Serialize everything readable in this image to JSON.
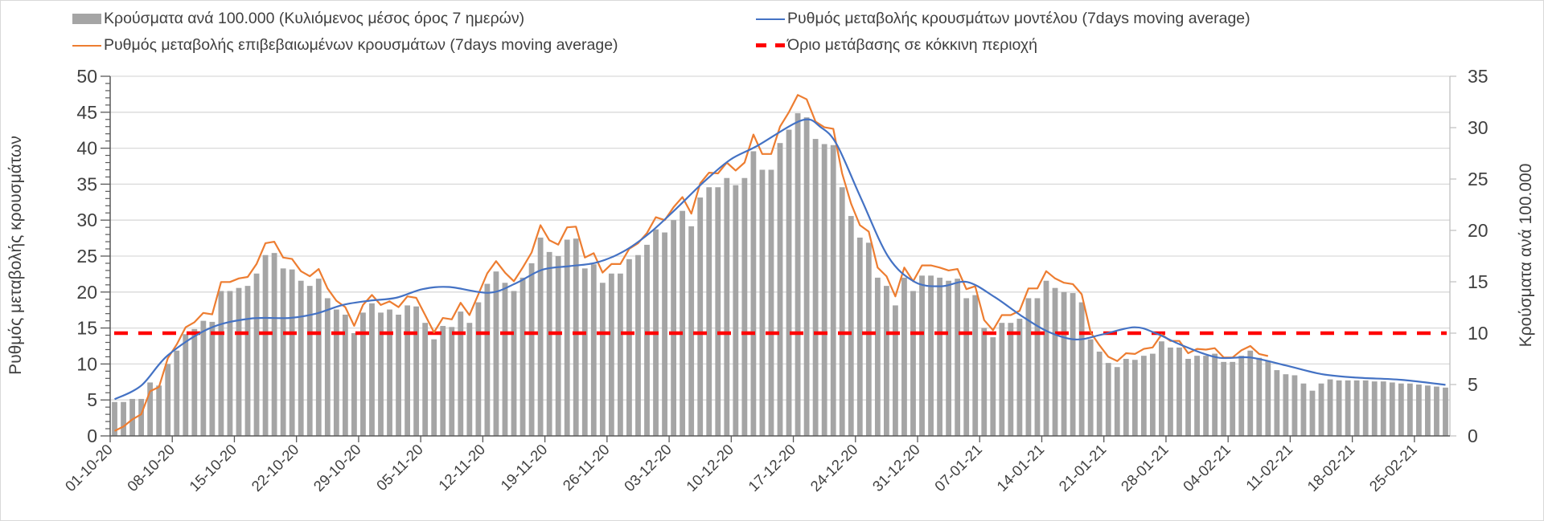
{
  "legend": {
    "bars": "Κρούσματα ανά 100.000 (Κυλιόμενος μέσος όρος 7 ημερών)",
    "orange": "Ρυθμός μεταβολής επιβεβαιωμένων κρουσμάτων (7days moving average)",
    "blue": "Ρυθμός μεταβολής κρουσμάτων μοντέλου (7days moving average)",
    "red": "Όριο μετάβασης σε κόκκινη περιοχή"
  },
  "chart_data": {
    "type": "bar+line",
    "x_axis": {
      "unit": "day index from 01-10-20 (daily categories)",
      "count": 151,
      "tick_every_days": 7,
      "tick_labels": [
        "01-10-20",
        "08-10-20",
        "15-10-20",
        "22-10-20",
        "29-10-20",
        "05-11-20",
        "12-11-20",
        "19-11-20",
        "26-11-20",
        "03-12-20",
        "10-12-20",
        "17-12-20",
        "24-12-20",
        "31-12-20",
        "07-01-21",
        "14-01-21",
        "21-01-21",
        "28-01-21",
        "04-02-21",
        "11-02-21",
        "18-02-21",
        "25-02-21"
      ]
    },
    "y_left": {
      "label": "Ρυθμός μεταβολής κρουσμάτων",
      "lim": [
        0,
        50
      ],
      "ticks": [
        "0",
        "5",
        "10",
        "15",
        "20",
        "25",
        "30",
        "35",
        "40",
        "45",
        "50"
      ],
      "grid": true
    },
    "y_right": {
      "label": "Κρούσματα ανά 100.000",
      "lim": [
        0,
        35
      ],
      "ticks": [
        "0",
        "5",
        "10",
        "15",
        "20",
        "25",
        "30",
        "35"
      ]
    },
    "colors": {
      "bars": "#a5a5a5",
      "orange": "#ed7d31",
      "blue": "#4472c4",
      "red": "#ff0000",
      "grid": "#d9d9d9"
    },
    "series": [
      {
        "name": "Κρούσματα ανά 100.000 (Κυλιόμενος μέσος όρος 7 ημερών)",
        "type": "bar",
        "axis": "right",
        "values": [
          3.3,
          3.3,
          3.6,
          3.6,
          5.2,
          4.9,
          7.0,
          8.3,
          9.9,
          10.4,
          11.2,
          11.1,
          14.1,
          14.1,
          14.4,
          14.6,
          15.8,
          17.6,
          17.8,
          16.3,
          16.2,
          15.1,
          14.6,
          15.3,
          13.4,
          12.3,
          11.8,
          10.0,
          12.0,
          12.9,
          12.0,
          12.3,
          11.8,
          12.7,
          12.6,
          11.0,
          9.4,
          10.7,
          10.6,
          12.1,
          11.0,
          13.0,
          14.8,
          16.0,
          14.9,
          14.1,
          15.4,
          16.8,
          19.3,
          17.9,
          17.5,
          19.1,
          19.2,
          16.3,
          16.7,
          14.9,
          15.8,
          15.8,
          17.2,
          17.6,
          18.6,
          20.1,
          19.8,
          21.0,
          21.9,
          20.4,
          23.2,
          24.2,
          24.2,
          25.1,
          24.4,
          25.1,
          27.7,
          25.9,
          25.9,
          28.5,
          29.8,
          31.4,
          31.0,
          28.9,
          28.4,
          28.3,
          24.2,
          21.4,
          19.3,
          18.8,
          15.4,
          14.6,
          12.7,
          15.4,
          14.1,
          15.6,
          15.6,
          15.4,
          15.1,
          15.3,
          13.4,
          13.7,
          10.5,
          9.6,
          11.0,
          11.0,
          11.4,
          13.4,
          13.4,
          15.1,
          14.4,
          14.0,
          13.9,
          13.0,
          9.4,
          8.2,
          7.1,
          6.7,
          7.5,
          7.4,
          7.8,
          8.0,
          9.2,
          8.6,
          8.6,
          7.5,
          7.8,
          7.8,
          8.0,
          7.2,
          7.2,
          7.8,
          8.3,
          7.6,
          7.3,
          6.4,
          6.0,
          5.9,
          5.1,
          4.4,
          5.1,
          5.5,
          5.4,
          5.4,
          5.4,
          5.4,
          5.3,
          5.3,
          5.2,
          5.1,
          5.1,
          5.0,
          4.9,
          4.8,
          4.7
        ]
      },
      {
        "name": "Ρυθμός μεταβολής επιβεβαιωμένων κρουσμάτων (7days moving average)",
        "type": "line",
        "axis": "left",
        "values": [
          0.7,
          1.3,
          2.3,
          3.0,
          6.2,
          6.8,
          10.8,
          12.7,
          15.1,
          15.8,
          17.1,
          16.9,
          21.4,
          21.4,
          21.9,
          22.1,
          23.9,
          26.8,
          27.0,
          24.8,
          24.6,
          22.9,
          22.2,
          23.2,
          20.5,
          18.8,
          17.9,
          15.3,
          18.2,
          19.6,
          18.2,
          18.7,
          17.9,
          19.4,
          19.2,
          16.8,
          14.4,
          16.4,
          16.2,
          18.5,
          16.8,
          19.7,
          22.6,
          24.3,
          22.7,
          21.5,
          23.4,
          25.5,
          29.3,
          27.2,
          26.6,
          29.0,
          29.1,
          24.8,
          25.4,
          22.7,
          23.9,
          23.9,
          26.0,
          26.8,
          28.2,
          30.4,
          30.0,
          31.8,
          33.2,
          30.9,
          35.1,
          36.6,
          36.5,
          38.0,
          36.9,
          38.0,
          41.9,
          39.2,
          39.2,
          43.0,
          45.0,
          47.4,
          46.8,
          43.7,
          42.9,
          42.7,
          36.5,
          32.3,
          29.3,
          28.4,
          23.4,
          22.2,
          19.4,
          23.4,
          21.5,
          23.7,
          23.7,
          23.4,
          23.0,
          23.2,
          20.4,
          20.8,
          16.1,
          14.7,
          16.8,
          16.8,
          17.4,
          20.5,
          20.5,
          22.9,
          21.9,
          21.3,
          21.1,
          19.7,
          14.4,
          12.6,
          11.0,
          10.4,
          11.5,
          11.4,
          12.1,
          12.3,
          14.1,
          13.2,
          13.2,
          11.5,
          12.1,
          12.0,
          12.2,
          10.9,
          10.9,
          11.9,
          12.5,
          11.4,
          11.1
        ]
      },
      {
        "name": "Ρυθμός μεταβολής κρουσμάτων μοντέλου (7days moving average)",
        "type": "line",
        "axis": "left",
        "points": [
          [
            0,
            5.1
          ],
          [
            3,
            7.0
          ],
          [
            6,
            11.2
          ],
          [
            10.6,
            14.9
          ],
          [
            15.2,
            16.3
          ],
          [
            19.7,
            16.4
          ],
          [
            22.7,
            17.0
          ],
          [
            25.7,
            18.2
          ],
          [
            28.7,
            18.8
          ],
          [
            31.7,
            19.2
          ],
          [
            34.7,
            20.4
          ],
          [
            37.7,
            20.7
          ],
          [
            42.2,
            19.9
          ],
          [
            45.2,
            21.2
          ],
          [
            48.2,
            23.1
          ],
          [
            51.3,
            23.6
          ],
          [
            54.3,
            24.1
          ],
          [
            57.3,
            25.6
          ],
          [
            60.3,
            28.2
          ],
          [
            63.3,
            31.6
          ],
          [
            66.4,
            35.3
          ],
          [
            69.4,
            38.4
          ],
          [
            72.4,
            40.3
          ],
          [
            77.5,
            43.9
          ],
          [
            79.6,
            42.9
          ],
          [
            81.4,
            40.5
          ],
          [
            84.1,
            33.1
          ],
          [
            87.2,
            24.9
          ],
          [
            90.2,
            21.4
          ],
          [
            93.2,
            20.8
          ],
          [
            96.1,
            21.4
          ],
          [
            99.2,
            19.3
          ],
          [
            102.2,
            16.7
          ],
          [
            105.2,
            14.5
          ],
          [
            108.3,
            13.4
          ],
          [
            111.3,
            14.1
          ],
          [
            114.9,
            15.1
          ],
          [
            117.3,
            14.3
          ],
          [
            120.3,
            12.6
          ],
          [
            124.3,
            10.9
          ],
          [
            128,
            10.9
          ],
          [
            132,
            9.8
          ],
          [
            136,
            8.6
          ],
          [
            140,
            8.1
          ],
          [
            145,
            7.8
          ],
          [
            150,
            7.1
          ]
        ]
      },
      {
        "name": "Όριο μετάβασης σε κόκκινη περιοχή",
        "type": "hline",
        "axis": "right",
        "value": 10
      }
    ]
  }
}
